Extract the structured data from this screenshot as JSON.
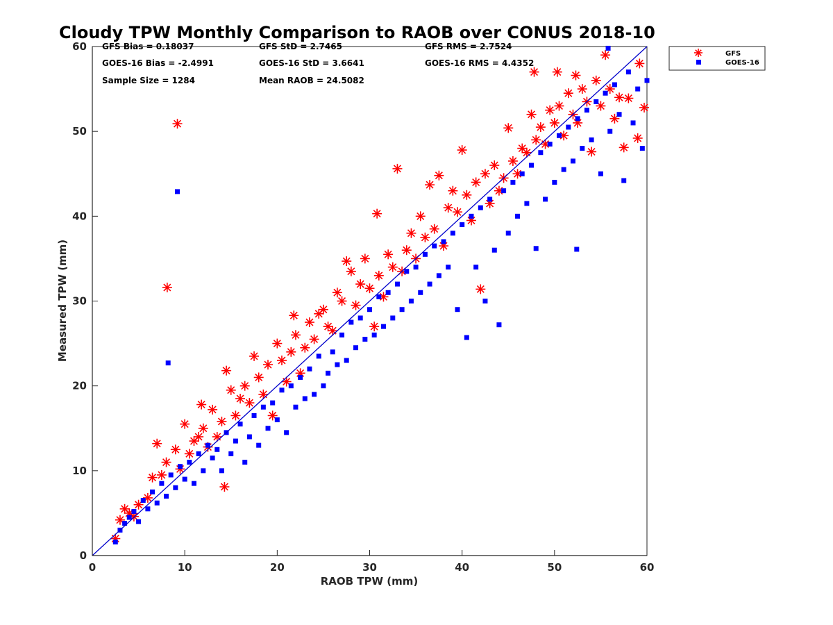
{
  "chart_data": {
    "type": "scatter",
    "title": "Cloudy TPW Monthly Comparison to RAOB over CONUS 2018-10",
    "xlabel": "RAOB TPW (mm)",
    "ylabel": "Measured TPW (mm)",
    "xlim": [
      0,
      60
    ],
    "ylim": [
      0,
      60
    ],
    "xticks": [
      "0",
      "10",
      "20",
      "30",
      "40",
      "50",
      "60"
    ],
    "yticks": [
      "0",
      "10",
      "20",
      "30",
      "40",
      "50",
      "60"
    ],
    "grid": false,
    "legend_position": "top-right-outside",
    "reference_line": {
      "x": [
        0,
        60
      ],
      "y": [
        0,
        60
      ],
      "color": "#0000cc"
    },
    "stats": [
      [
        "GFS Bias = 0.18037",
        "GFS StD = 2.7465",
        "GFS RMS = 2.7524"
      ],
      [
        "GOES-16 Bias = -2.4991",
        "GOES-16 StD = 3.6641",
        "GOES-16 RMS = 4.4352"
      ],
      [
        "Sample Size = 1284",
        "Mean RAOB = 24.5082",
        ""
      ]
    ],
    "series": [
      {
        "name": "GFS",
        "marker": "asterisk",
        "color": "#ff0000",
        "points": [
          [
            9.2,
            50.9
          ],
          [
            8.1,
            31.6
          ],
          [
            2.5,
            2.0
          ],
          [
            3.0,
            4.2
          ],
          [
            3.5,
            5.5
          ],
          [
            4.0,
            5.0
          ],
          [
            4.5,
            4.6
          ],
          [
            5.0,
            6.0
          ],
          [
            6.0,
            6.8
          ],
          [
            6.5,
            9.2
          ],
          [
            7.0,
            13.2
          ],
          [
            7.5,
            9.5
          ],
          [
            8.0,
            11.0
          ],
          [
            9.0,
            12.5
          ],
          [
            9.5,
            10.2
          ],
          [
            10.0,
            15.5
          ],
          [
            10.5,
            12.0
          ],
          [
            11.0,
            13.5
          ],
          [
            11.5,
            14.0
          ],
          [
            11.8,
            17.8
          ],
          [
            12.0,
            15.0
          ],
          [
            12.5,
            12.8
          ],
          [
            13.0,
            17.2
          ],
          [
            13.5,
            14.0
          ],
          [
            14.0,
            15.8
          ],
          [
            14.3,
            8.1
          ],
          [
            14.5,
            21.8
          ],
          [
            15.0,
            19.5
          ],
          [
            15.5,
            16.5
          ],
          [
            16.0,
            18.5
          ],
          [
            16.5,
            20.0
          ],
          [
            17.0,
            18.0
          ],
          [
            17.5,
            23.5
          ],
          [
            18.0,
            21.0
          ],
          [
            18.5,
            19.0
          ],
          [
            19.0,
            22.5
          ],
          [
            19.5,
            16.5
          ],
          [
            20.0,
            25.0
          ],
          [
            20.5,
            23.0
          ],
          [
            21.0,
            20.5
          ],
          [
            21.5,
            24.0
          ],
          [
            21.8,
            28.3
          ],
          [
            22.0,
            26.0
          ],
          [
            22.5,
            21.5
          ],
          [
            23.0,
            24.5
          ],
          [
            23.5,
            27.5
          ],
          [
            24.0,
            25.5
          ],
          [
            24.5,
            28.5
          ],
          [
            25.0,
            29.0
          ],
          [
            25.5,
            27.0
          ],
          [
            26.0,
            26.5
          ],
          [
            26.5,
            31.0
          ],
          [
            27.0,
            30.0
          ],
          [
            27.5,
            34.7
          ],
          [
            28.0,
            33.5
          ],
          [
            28.5,
            29.5
          ],
          [
            29.0,
            32.0
          ],
          [
            29.5,
            35.0
          ],
          [
            30.0,
            31.5
          ],
          [
            30.5,
            27.0
          ],
          [
            30.8,
            40.3
          ],
          [
            31.0,
            33.0
          ],
          [
            31.5,
            30.5
          ],
          [
            32.0,
            35.5
          ],
          [
            32.5,
            34.0
          ],
          [
            33.0,
            45.6
          ],
          [
            33.5,
            33.5
          ],
          [
            34.0,
            36.0
          ],
          [
            34.5,
            38.0
          ],
          [
            35.0,
            35.0
          ],
          [
            35.5,
            40.0
          ],
          [
            36.0,
            37.5
          ],
          [
            36.5,
            43.7
          ],
          [
            37.0,
            38.5
          ],
          [
            37.5,
            44.8
          ],
          [
            38.0,
            36.5
          ],
          [
            38.5,
            41.0
          ],
          [
            39.0,
            43.0
          ],
          [
            39.5,
            40.5
          ],
          [
            40.0,
            47.8
          ],
          [
            40.5,
            42.5
          ],
          [
            41.0,
            39.5
          ],
          [
            41.5,
            44.0
          ],
          [
            42.0,
            31.4
          ],
          [
            42.5,
            45.0
          ],
          [
            43.0,
            41.5
          ],
          [
            43.5,
            46.0
          ],
          [
            44.0,
            43.0
          ],
          [
            44.5,
            44.5
          ],
          [
            45.0,
            50.4
          ],
          [
            45.5,
            46.5
          ],
          [
            46.0,
            45.0
          ],
          [
            46.5,
            48.0
          ],
          [
            47.0,
            47.5
          ],
          [
            47.5,
            52.0
          ],
          [
            47.8,
            57.0
          ],
          [
            48.0,
            49.0
          ],
          [
            48.5,
            50.5
          ],
          [
            49.0,
            48.5
          ],
          [
            49.5,
            52.5
          ],
          [
            50.0,
            51.0
          ],
          [
            50.3,
            57.0
          ],
          [
            50.5,
            53.0
          ],
          [
            51.0,
            49.5
          ],
          [
            51.5,
            54.5
          ],
          [
            52.0,
            52.0
          ],
          [
            52.3,
            56.6
          ],
          [
            52.5,
            51.0
          ],
          [
            53.0,
            55.0
          ],
          [
            53.5,
            53.5
          ],
          [
            54.0,
            47.6
          ],
          [
            54.5,
            56.0
          ],
          [
            55.0,
            53.0
          ],
          [
            55.5,
            59.0
          ],
          [
            56.0,
            55.0
          ],
          [
            56.5,
            51.5
          ],
          [
            57.0,
            54.0
          ],
          [
            57.5,
            48.1
          ],
          [
            58.0,
            53.9
          ],
          [
            59.0,
            49.2
          ],
          [
            59.2,
            58.0
          ],
          [
            59.7,
            52.8
          ]
        ]
      },
      {
        "name": "GOES-16",
        "marker": "square",
        "color": "#0000ff",
        "points": [
          [
            9.2,
            42.9
          ],
          [
            8.2,
            22.7
          ],
          [
            2.5,
            1.6
          ],
          [
            3.0,
            3.0
          ],
          [
            3.5,
            3.8
          ],
          [
            4.0,
            4.5
          ],
          [
            4.5,
            5.2
          ],
          [
            5.0,
            4.0
          ],
          [
            5.5,
            6.5
          ],
          [
            6.0,
            5.5
          ],
          [
            6.5,
            7.5
          ],
          [
            7.0,
            6.2
          ],
          [
            7.5,
            8.5
          ],
          [
            8.0,
            7.0
          ],
          [
            8.5,
            9.5
          ],
          [
            9.0,
            8.0
          ],
          [
            9.5,
            10.5
          ],
          [
            10.0,
            9.0
          ],
          [
            10.5,
            11.0
          ],
          [
            11.0,
            8.5
          ],
          [
            11.5,
            12.0
          ],
          [
            12.0,
            10.0
          ],
          [
            12.5,
            13.0
          ],
          [
            13.0,
            11.5
          ],
          [
            13.5,
            12.5
          ],
          [
            14.0,
            10.0
          ],
          [
            14.5,
            14.5
          ],
          [
            15.0,
            12.0
          ],
          [
            15.5,
            13.5
          ],
          [
            16.0,
            15.5
          ],
          [
            16.5,
            11.0
          ],
          [
            17.0,
            14.0
          ],
          [
            17.5,
            16.5
          ],
          [
            18.0,
            13.0
          ],
          [
            18.5,
            17.5
          ],
          [
            19.0,
            15.0
          ],
          [
            19.5,
            18.0
          ],
          [
            20.0,
            16.0
          ],
          [
            20.5,
            19.5
          ],
          [
            21.0,
            14.5
          ],
          [
            21.5,
            20.0
          ],
          [
            22.0,
            17.5
          ],
          [
            22.5,
            21.0
          ],
          [
            23.0,
            18.5
          ],
          [
            23.5,
            22.0
          ],
          [
            24.0,
            19.0
          ],
          [
            24.5,
            23.5
          ],
          [
            25.0,
            20.0
          ],
          [
            25.5,
            21.5
          ],
          [
            26.0,
            24.0
          ],
          [
            26.5,
            22.5
          ],
          [
            27.0,
            26.0
          ],
          [
            27.5,
            23.0
          ],
          [
            28.0,
            27.5
          ],
          [
            28.5,
            24.5
          ],
          [
            29.0,
            28.0
          ],
          [
            29.5,
            25.5
          ],
          [
            30.0,
            29.0
          ],
          [
            30.5,
            26.0
          ],
          [
            31.0,
            30.5
          ],
          [
            31.5,
            27.0
          ],
          [
            32.0,
            31.0
          ],
          [
            32.5,
            28.0
          ],
          [
            33.0,
            32.0
          ],
          [
            33.5,
            29.0
          ],
          [
            34.0,
            33.5
          ],
          [
            34.5,
            30.0
          ],
          [
            35.0,
            34.0
          ],
          [
            35.5,
            31.0
          ],
          [
            36.0,
            35.5
          ],
          [
            36.5,
            32.0
          ],
          [
            37.0,
            36.5
          ],
          [
            37.5,
            33.0
          ],
          [
            38.0,
            37.0
          ],
          [
            38.5,
            34.0
          ],
          [
            39.0,
            38.0
          ],
          [
            39.5,
            29.0
          ],
          [
            40.0,
            39.0
          ],
          [
            40.5,
            25.7
          ],
          [
            41.0,
            40.0
          ],
          [
            41.5,
            34.0
          ],
          [
            42.0,
            41.0
          ],
          [
            42.5,
            30.0
          ],
          [
            43.0,
            42.0
          ],
          [
            43.5,
            36.0
          ],
          [
            44.0,
            27.2
          ],
          [
            44.5,
            43.0
          ],
          [
            45.0,
            38.0
          ],
          [
            45.5,
            44.0
          ],
          [
            46.0,
            40.0
          ],
          [
            46.5,
            45.0
          ],
          [
            47.0,
            41.5
          ],
          [
            47.5,
            46.0
          ],
          [
            48.0,
            36.2
          ],
          [
            48.5,
            47.5
          ],
          [
            49.0,
            42.0
          ],
          [
            49.5,
            48.5
          ],
          [
            50.0,
            44.0
          ],
          [
            50.5,
            49.5
          ],
          [
            51.0,
            45.5
          ],
          [
            51.5,
            50.5
          ],
          [
            52.0,
            46.5
          ],
          [
            52.4,
            36.1
          ],
          [
            52.5,
            51.5
          ],
          [
            53.0,
            48.0
          ],
          [
            53.5,
            52.5
          ],
          [
            54.0,
            49.0
          ],
          [
            54.5,
            53.5
          ],
          [
            55.0,
            45.0
          ],
          [
            55.5,
            54.5
          ],
          [
            55.8,
            59.8
          ],
          [
            56.0,
            50.0
          ],
          [
            56.5,
            55.5
          ],
          [
            57.0,
            52.0
          ],
          [
            57.5,
            44.2
          ],
          [
            58.0,
            57.0
          ],
          [
            58.5,
            51.0
          ],
          [
            59.0,
            55.0
          ],
          [
            59.5,
            48.0
          ],
          [
            60.0,
            56.0
          ]
        ]
      }
    ]
  }
}
